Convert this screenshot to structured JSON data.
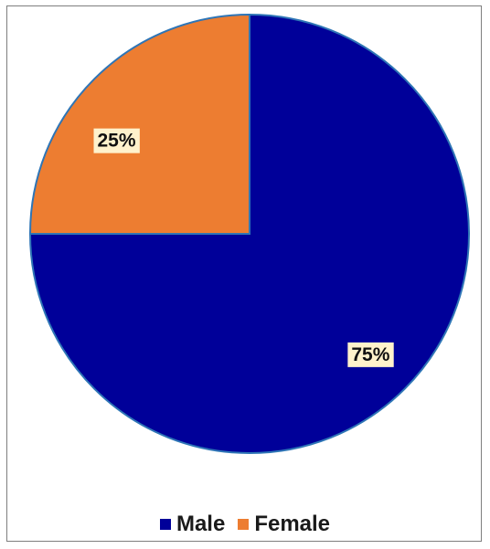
{
  "chart_data": {
    "type": "pie",
    "title": "",
    "slices": [
      {
        "label": "Male",
        "value": 75,
        "display": "75%",
        "color": "#000099"
      },
      {
        "label": "Female",
        "value": 25,
        "display": "25%",
        "color": "#ED7D31"
      }
    ],
    "start_angle_deg": 0,
    "direction": "clockwise",
    "slice_border_color": "#2E75B6",
    "label_background": "#FFF2CC",
    "legend": {
      "position": "bottom",
      "items": [
        {
          "label": "Male",
          "color": "#000099"
        },
        {
          "label": "Female",
          "color": "#ED7D31"
        }
      ]
    }
  }
}
